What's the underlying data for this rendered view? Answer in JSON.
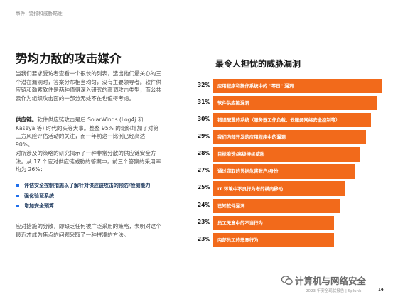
{
  "breadcrumb": "事件: 警报和威胁瞄准",
  "left": {
    "title": "势均力敌的攻击媒介",
    "intro": "当我们要求受访者查看一个很长的列表，选出他们最关心的三个潜在漏洞时，答案分布相当均匀，没有主要领导者。软件供应链和勒索软件是两种值得深入研究的高调攻击类型，而公共云作为组织攻击面的一部分无处不在也值得考虑。",
    "supply_chain_label": "供应链。",
    "supply_chain_text": "软件供应链攻击是后 SolarWinds (Log4j 和 Kaseya 等) 时代的头等大事。整整 95% 的组织增加了对第三方风险评估活动的关注，而一年前这一比例已经高达 90%。",
    "strategy_text": "对所涉及的策略的研究揭示了一种非常分散的供应链安全方法。从 17 个应对供应链威胁的答案中，前三个答案的采用率均为 26%：",
    "bullets": [
      "评估安全控制措施以了解针对供应链攻击的预防/检测能力",
      "强化验证系统",
      "增加安全预算"
    ],
    "closing_text": "应对措施的分散，即缺乏任何被广泛采用的策略，表明对这个最近才成为焦点的问题采取了一种拼凑的方法。"
  },
  "right": {
    "title": "最令人担忧的威胁漏洞",
    "bar_color": "#f26a1b",
    "chart_data": {
      "type": "bar",
      "orientation": "horizontal",
      "categories": [
        "应用程序和操作系统中的 \"零日\" 漏洞",
        "软件供应链漏洞",
        "错误配置的系统（服务器工作负载、云服务网络安全控制等）",
        "我们内部开发的应用程序中的漏洞",
        "目标渗透/高级持续威胁",
        "通过窃取的凭据危害账户/身份",
        "IT 环境中不良行为者的横向移动",
        "已知软件漏洞",
        "员工无意中的不当行为",
        "内部员工的恶意行为"
      ],
      "values": [
        32,
        31,
        30,
        29,
        28,
        27,
        25,
        24,
        23,
        23
      ],
      "value_labels": [
        "32%",
        "31%",
        "30%",
        "29%",
        "28%",
        "27%",
        "25%",
        "24%",
        "23%",
        "23%"
      ],
      "xlim": [
        0,
        32
      ]
    }
  },
  "watermark": "计算机与网络安全",
  "footer": "2023 年安全现状报告 | Splunk",
  "page_number": "14"
}
